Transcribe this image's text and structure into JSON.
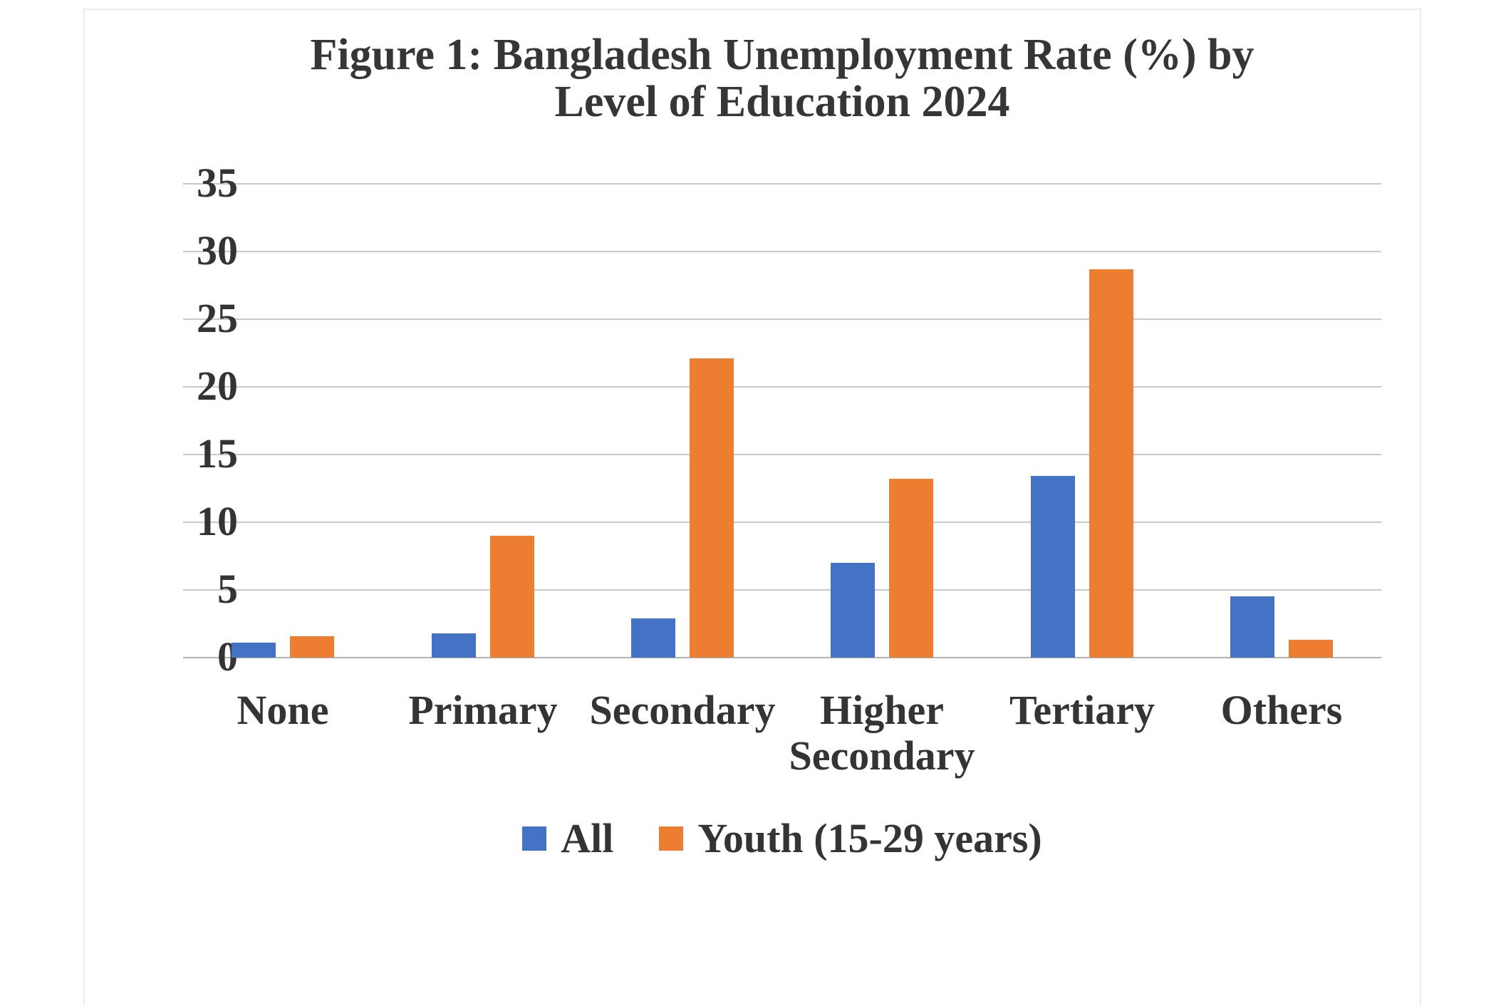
{
  "figure": {
    "title_line1": "Figure 1: Bangladesh Unemployment Rate (%) by",
    "title_line2": "Level of Education 2024"
  },
  "chart_data": {
    "type": "bar",
    "title": "Figure 1: Bangladesh Unemployment Rate (%) by Level of Education 2024",
    "categories": [
      "None",
      "Primary",
      "Secondary",
      "Higher Secondary",
      "Tertiary",
      "Others"
    ],
    "series": [
      {
        "name": "All",
        "color": "#4472C4",
        "values": [
          1.1,
          1.8,
          2.9,
          7.0,
          13.4,
          4.5
        ]
      },
      {
        "name": "Youth (15-29 years)",
        "color": "#ED7D31",
        "values": [
          1.6,
          9.0,
          22.1,
          13.2,
          28.7,
          1.3
        ]
      }
    ],
    "xlabel": "",
    "ylabel": "",
    "ylim": [
      0,
      35
    ],
    "ytick_interval": 5,
    "yticks": [
      "0",
      "5",
      "10",
      "15",
      "20",
      "25",
      "30",
      "35"
    ],
    "grid": true,
    "legend_position": "bottom",
    "background": "#ffffff",
    "gridline_color": "#c9c9c9",
    "text_color": "#343434"
  }
}
